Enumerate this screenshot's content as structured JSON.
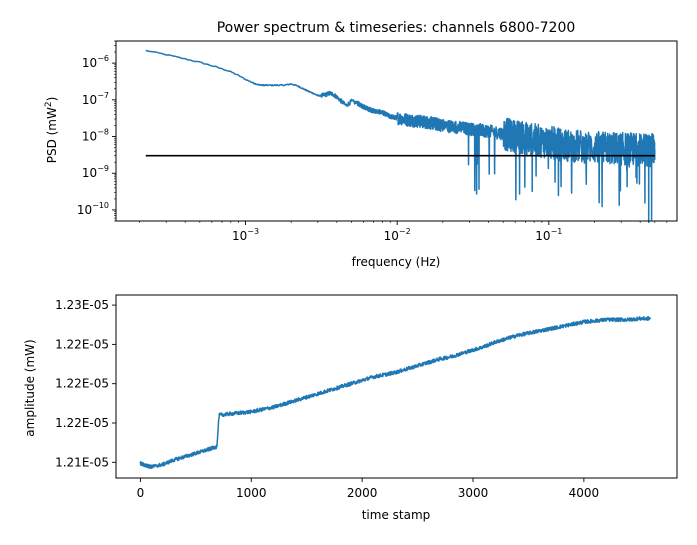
{
  "chart_data": [
    {
      "type": "line",
      "title": "Power spectrum & timeseries: channels 6800-7200",
      "xlabel": "frequency (Hz)",
      "ylabel_main": "PSD (mW",
      "ylabel_sup": "2",
      "ylabel_close": ")",
      "xscale": "log",
      "yscale": "log",
      "xlim": [
        0.00014,
        0.7
      ],
      "ylim": [
        5e-11,
        4e-06
      ],
      "grid": false,
      "x_ticks": [
        0.001,
        0.01,
        0.1
      ],
      "x_tick_labels": [
        {
          "base": "10",
          "exp": "−3"
        },
        {
          "base": "10",
          "exp": "−2"
        },
        {
          "base": "10",
          "exp": "−1"
        }
      ],
      "y_ticks": [
        1e-10,
        1e-09,
        1e-08,
        1e-07,
        1e-06
      ],
      "y_tick_labels": [
        {
          "base": "10",
          "exp": "−10"
        },
        {
          "base": "10",
          "exp": "−9"
        },
        {
          "base": "10",
          "exp": "−8"
        },
        {
          "base": "10",
          "exp": "−7"
        },
        {
          "base": "10",
          "exp": "−6"
        }
      ],
      "series": [
        {
          "color": "#1f77b4",
          "x": [
            0.00022,
            0.0003,
            0.0004,
            0.0005,
            0.0006,
            0.0007,
            0.0008,
            0.0009,
            0.001,
            0.0011,
            0.0012,
            0.0013,
            0.0014,
            0.0016,
            0.0018,
            0.002,
            0.0022,
            0.0024,
            0.0026,
            0.0028,
            0.003,
            0.0032,
            0.0034,
            0.0036,
            0.0038,
            0.004,
            0.0043,
            0.0046,
            0.005,
            0.0055,
            0.006,
            0.0065,
            0.007,
            0.008,
            0.009,
            0.01,
            0.012,
            0.014,
            0.016,
            0.018,
            0.02,
            0.025,
            0.03,
            0.035,
            0.04,
            0.05,
            0.06,
            0.07,
            0.08,
            0.1,
            0.12,
            0.15,
            0.2,
            0.25,
            0.3,
            0.35,
            0.4,
            0.45,
            0.5
          ],
          "y": [
            2.2e-06,
            1.7e-06,
            1.3e-06,
            1.05e-06,
            8.5e-07,
            7e-07,
            5.8e-07,
            4.6e-07,
            3.6e-07,
            3e-07,
            2.6e-07,
            2.5e-07,
            2.5e-07,
            2.5e-07,
            2.5e-07,
            2.7e-07,
            2.4e-07,
            2e-07,
            1.7e-07,
            1.5e-07,
            1.3e-07,
            1.3e-07,
            1.4e-07,
            1.5e-07,
            1.4e-07,
            1.2e-07,
            9e-08,
            7e-08,
            9e-08,
            8e-08,
            6.5e-08,
            5.5e-08,
            5e-08,
            4.5e-08,
            3.5e-08,
            3.2e-08,
            2.8e-08,
            2.6e-08,
            2.4e-08,
            2.2e-08,
            2e-08,
            1.8e-08,
            1.6e-08,
            1.5e-08,
            1.4e-08,
            1.2e-08,
            1e-08,
            9e-09,
            8e-09,
            7e-09,
            6e-09,
            5.5e-09,
            5e-09,
            4.8e-09,
            4.6e-09,
            4.5e-09,
            4.4e-09,
            4.3e-09,
            4.2e-09
          ]
        },
        {
          "color": "#000000",
          "x": [
            0.00022,
            0.5
          ],
          "y": [
            3e-09,
            3e-09
          ]
        }
      ]
    },
    {
      "type": "line",
      "title": "",
      "xlabel": "time stamp",
      "ylabel": "amplitude (mW)",
      "xlim": [
        -220,
        4840
      ],
      "ylim": [
        1.2105e-05,
        1.2268e-05
      ],
      "grid": false,
      "x_ticks": [
        0,
        1000,
        2000,
        3000,
        4000
      ],
      "x_tick_labels": [
        "0",
        "1000",
        "2000",
        "3000",
        "4000"
      ],
      "y_ticks": [
        1.2119e-05,
        1.2154e-05,
        1.2189e-05,
        1.2224e-05,
        1.2259e-05
      ],
      "y_tick_labels": [
        "1.21E-05",
        "1.22E-05",
        "1.22E-05",
        "1.22E-05",
        "1.23E-05"
      ],
      "series": [
        {
          "color": "#1f77b4",
          "x": [
            0,
            50,
            100,
            200,
            300,
            400,
            500,
            600,
            690,
            700,
            710,
            800,
            900,
            1000,
            1100,
            1200,
            1300,
            1400,
            1500,
            1600,
            1700,
            1800,
            1900,
            2000,
            2100,
            2200,
            2300,
            2400,
            2500,
            2600,
            2700,
            2800,
            2900,
            3000,
            3100,
            3200,
            3300,
            3400,
            3500,
            3600,
            3700,
            3800,
            3900,
            4000,
            4100,
            4200,
            4300,
            4400,
            4500,
            4600
          ],
          "y": [
            1.2118e-05,
            1.2116e-05,
            1.2115e-05,
            1.2117e-05,
            1.2121e-05,
            1.2124e-05,
            1.2127e-05,
            1.213e-05,
            1.2133e-05,
            1.2147e-05,
            1.2161e-05,
            1.2162e-05,
            1.2163e-05,
            1.2164e-05,
            1.2166e-05,
            1.2168e-05,
            1.2171e-05,
            1.2174e-05,
            1.2177e-05,
            1.218e-05,
            1.2183e-05,
            1.2186e-05,
            1.2189e-05,
            1.2192e-05,
            1.2195e-05,
            1.2197e-05,
            1.2199e-05,
            1.2202e-05,
            1.2205e-05,
            1.2208e-05,
            1.2211e-05,
            1.2213e-05,
            1.2216e-05,
            1.2219e-05,
            1.2222e-05,
            1.2226e-05,
            1.2229e-05,
            1.2232e-05,
            1.2234e-05,
            1.2236e-05,
            1.2238e-05,
            1.224e-05,
            1.2242e-05,
            1.2244e-05,
            1.2245e-05,
            1.2246e-05,
            1.2246e-05,
            1.2246e-05,
            1.2247e-05,
            1.2247e-05
          ]
        }
      ]
    }
  ]
}
